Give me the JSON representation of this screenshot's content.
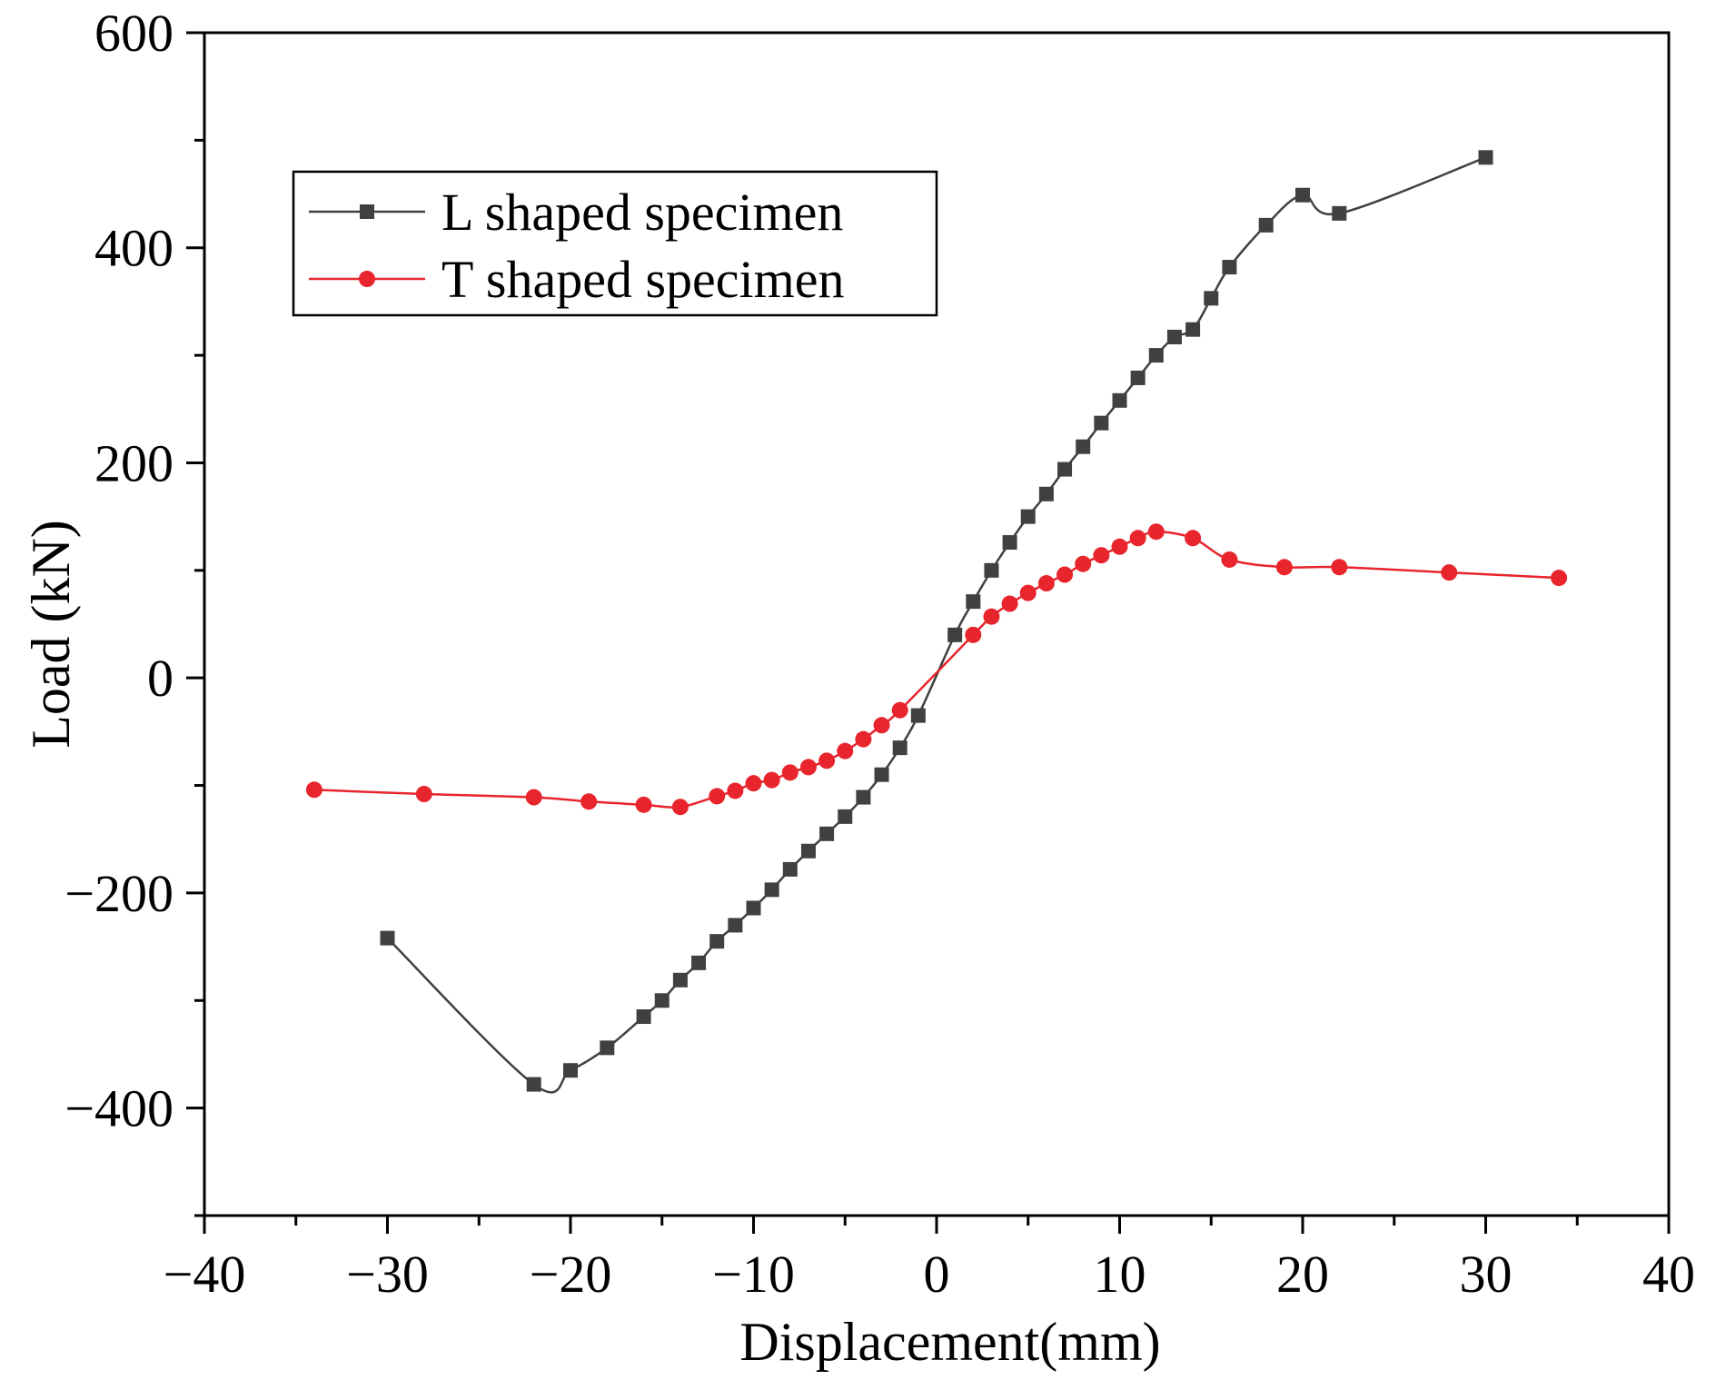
{
  "chart_data": {
    "type": "line",
    "title": "",
    "xlabel": "Displacement(mm)",
    "ylabel": "Load (kN)",
    "xlim": [
      -40,
      40
    ],
    "ylim": [
      -500,
      600
    ],
    "x_ticks": [
      -40,
      -30,
      -20,
      -10,
      0,
      10,
      20,
      30,
      40
    ],
    "x_tick_labels": [
      "−40",
      "−30",
      "−20",
      "−10",
      "0",
      "10",
      "20",
      "30",
      "40"
    ],
    "y_ticks": [
      -400,
      -200,
      0,
      200,
      400,
      600
    ],
    "y_tick_labels": [
      "−400",
      "−200",
      "0",
      "200",
      "400",
      "600"
    ],
    "grid": false,
    "legend_position": "top-left",
    "series": [
      {
        "name": "L shaped specimen",
        "color": "#404040",
        "marker": "square",
        "x": [
          -30,
          -22,
          -20,
          -18,
          -16,
          -15,
          -14,
          -13,
          -12,
          -11,
          -10,
          -9,
          -8,
          -7,
          -6,
          -5,
          -4,
          -3,
          -2,
          -1,
          1,
          2,
          3,
          4,
          5,
          6,
          7,
          8,
          9,
          10,
          11,
          12,
          13,
          14,
          15,
          16,
          18,
          20,
          22,
          30
        ],
        "y": [
          -242,
          -378,
          -365,
          -344,
          -315,
          -300,
          -281,
          -265,
          -245,
          -230,
          -214,
          -197,
          -178,
          -161,
          -145,
          -129,
          -111,
          -90,
          -65,
          -35,
          40,
          71,
          100,
          126,
          150,
          171,
          194,
          215,
          237,
          258,
          279,
          300,
          317,
          324,
          353,
          382,
          421,
          449,
          432,
          484
        ]
      },
      {
        "name": "T shaped specimen",
        "color": "#e8242c",
        "marker": "circle",
        "x": [
          -34,
          -28,
          -22,
          -19,
          -16,
          -14,
          -12,
          -11,
          -10,
          -9,
          -8,
          -7,
          -6,
          -5,
          -4,
          -3,
          -2,
          2,
          3,
          4,
          5,
          6,
          7,
          8,
          9,
          10,
          11,
          12,
          14,
          16,
          19,
          22,
          28,
          34
        ],
        "y": [
          -104,
          -108,
          -111,
          -115,
          -118,
          -120,
          -110,
          -105,
          -98,
          -95,
          -88,
          -83,
          -77,
          -68,
          -57,
          -44,
          -30,
          40,
          57,
          69,
          79,
          88,
          96,
          106,
          114,
          122,
          130,
          136,
          130,
          110,
          103,
          103,
          98,
          93
        ]
      }
    ]
  }
}
